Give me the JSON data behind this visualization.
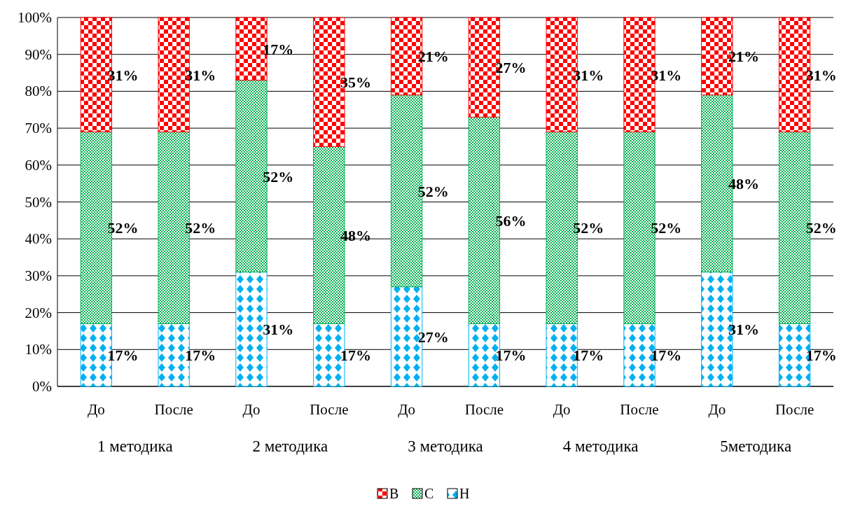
{
  "chart_data": {
    "type": "bar",
    "stacked": true,
    "categories": [
      "До",
      "После",
      "До",
      "После",
      "До",
      "После",
      "До",
      "После",
      "До",
      "После"
    ],
    "annotations": [
      "1 методика",
      "2 методика",
      "3 методика",
      "4 методика",
      "5методика"
    ],
    "series": [
      {
        "name": "Н",
        "color": "#00b0f0",
        "values": [
          17,
          17,
          31,
          17,
          27,
          17,
          17,
          17,
          31,
          17
        ],
        "value_labels": [
          "17%",
          "17%",
          "31%",
          "17%",
          "27%",
          "17%",
          "17%",
          "17%",
          "31%",
          "17%"
        ]
      },
      {
        "name": "С",
        "color": "#00b050",
        "values": [
          52,
          52,
          52,
          48,
          52,
          56,
          52,
          52,
          48,
          52
        ],
        "value_labels": [
          "52%",
          "52%",
          "52%",
          "48%",
          "52%",
          "56%",
          "52%",
          "52%",
          "48%",
          "52%"
        ]
      },
      {
        "name": "В",
        "color": "#ff0000",
        "values": [
          31,
          31,
          17,
          35,
          21,
          27,
          31,
          31,
          21,
          31
        ],
        "value_labels": [
          "31%",
          "31%",
          "17%",
          "35%",
          "21%",
          "27%",
          "31%",
          "31%",
          "21%",
          "31%"
        ]
      }
    ],
    "ylim": [
      0,
      100
    ],
    "yticks": [
      {
        "value": 0,
        "label": "0%"
      },
      {
        "value": 10,
        "label": "10%"
      },
      {
        "value": 20,
        "label": "20%"
      },
      {
        "value": 30,
        "label": "30%"
      },
      {
        "value": 40,
        "label": "40%"
      },
      {
        "value": 50,
        "label": "50%"
      },
      {
        "value": 60,
        "label": "60%"
      },
      {
        "value": 70,
        "label": "70%"
      },
      {
        "value": 80,
        "label": "80%"
      },
      {
        "value": 90,
        "label": "90%"
      },
      {
        "value": 100,
        "label": "100%"
      }
    ],
    "grid": "y",
    "legend": "bottom"
  }
}
